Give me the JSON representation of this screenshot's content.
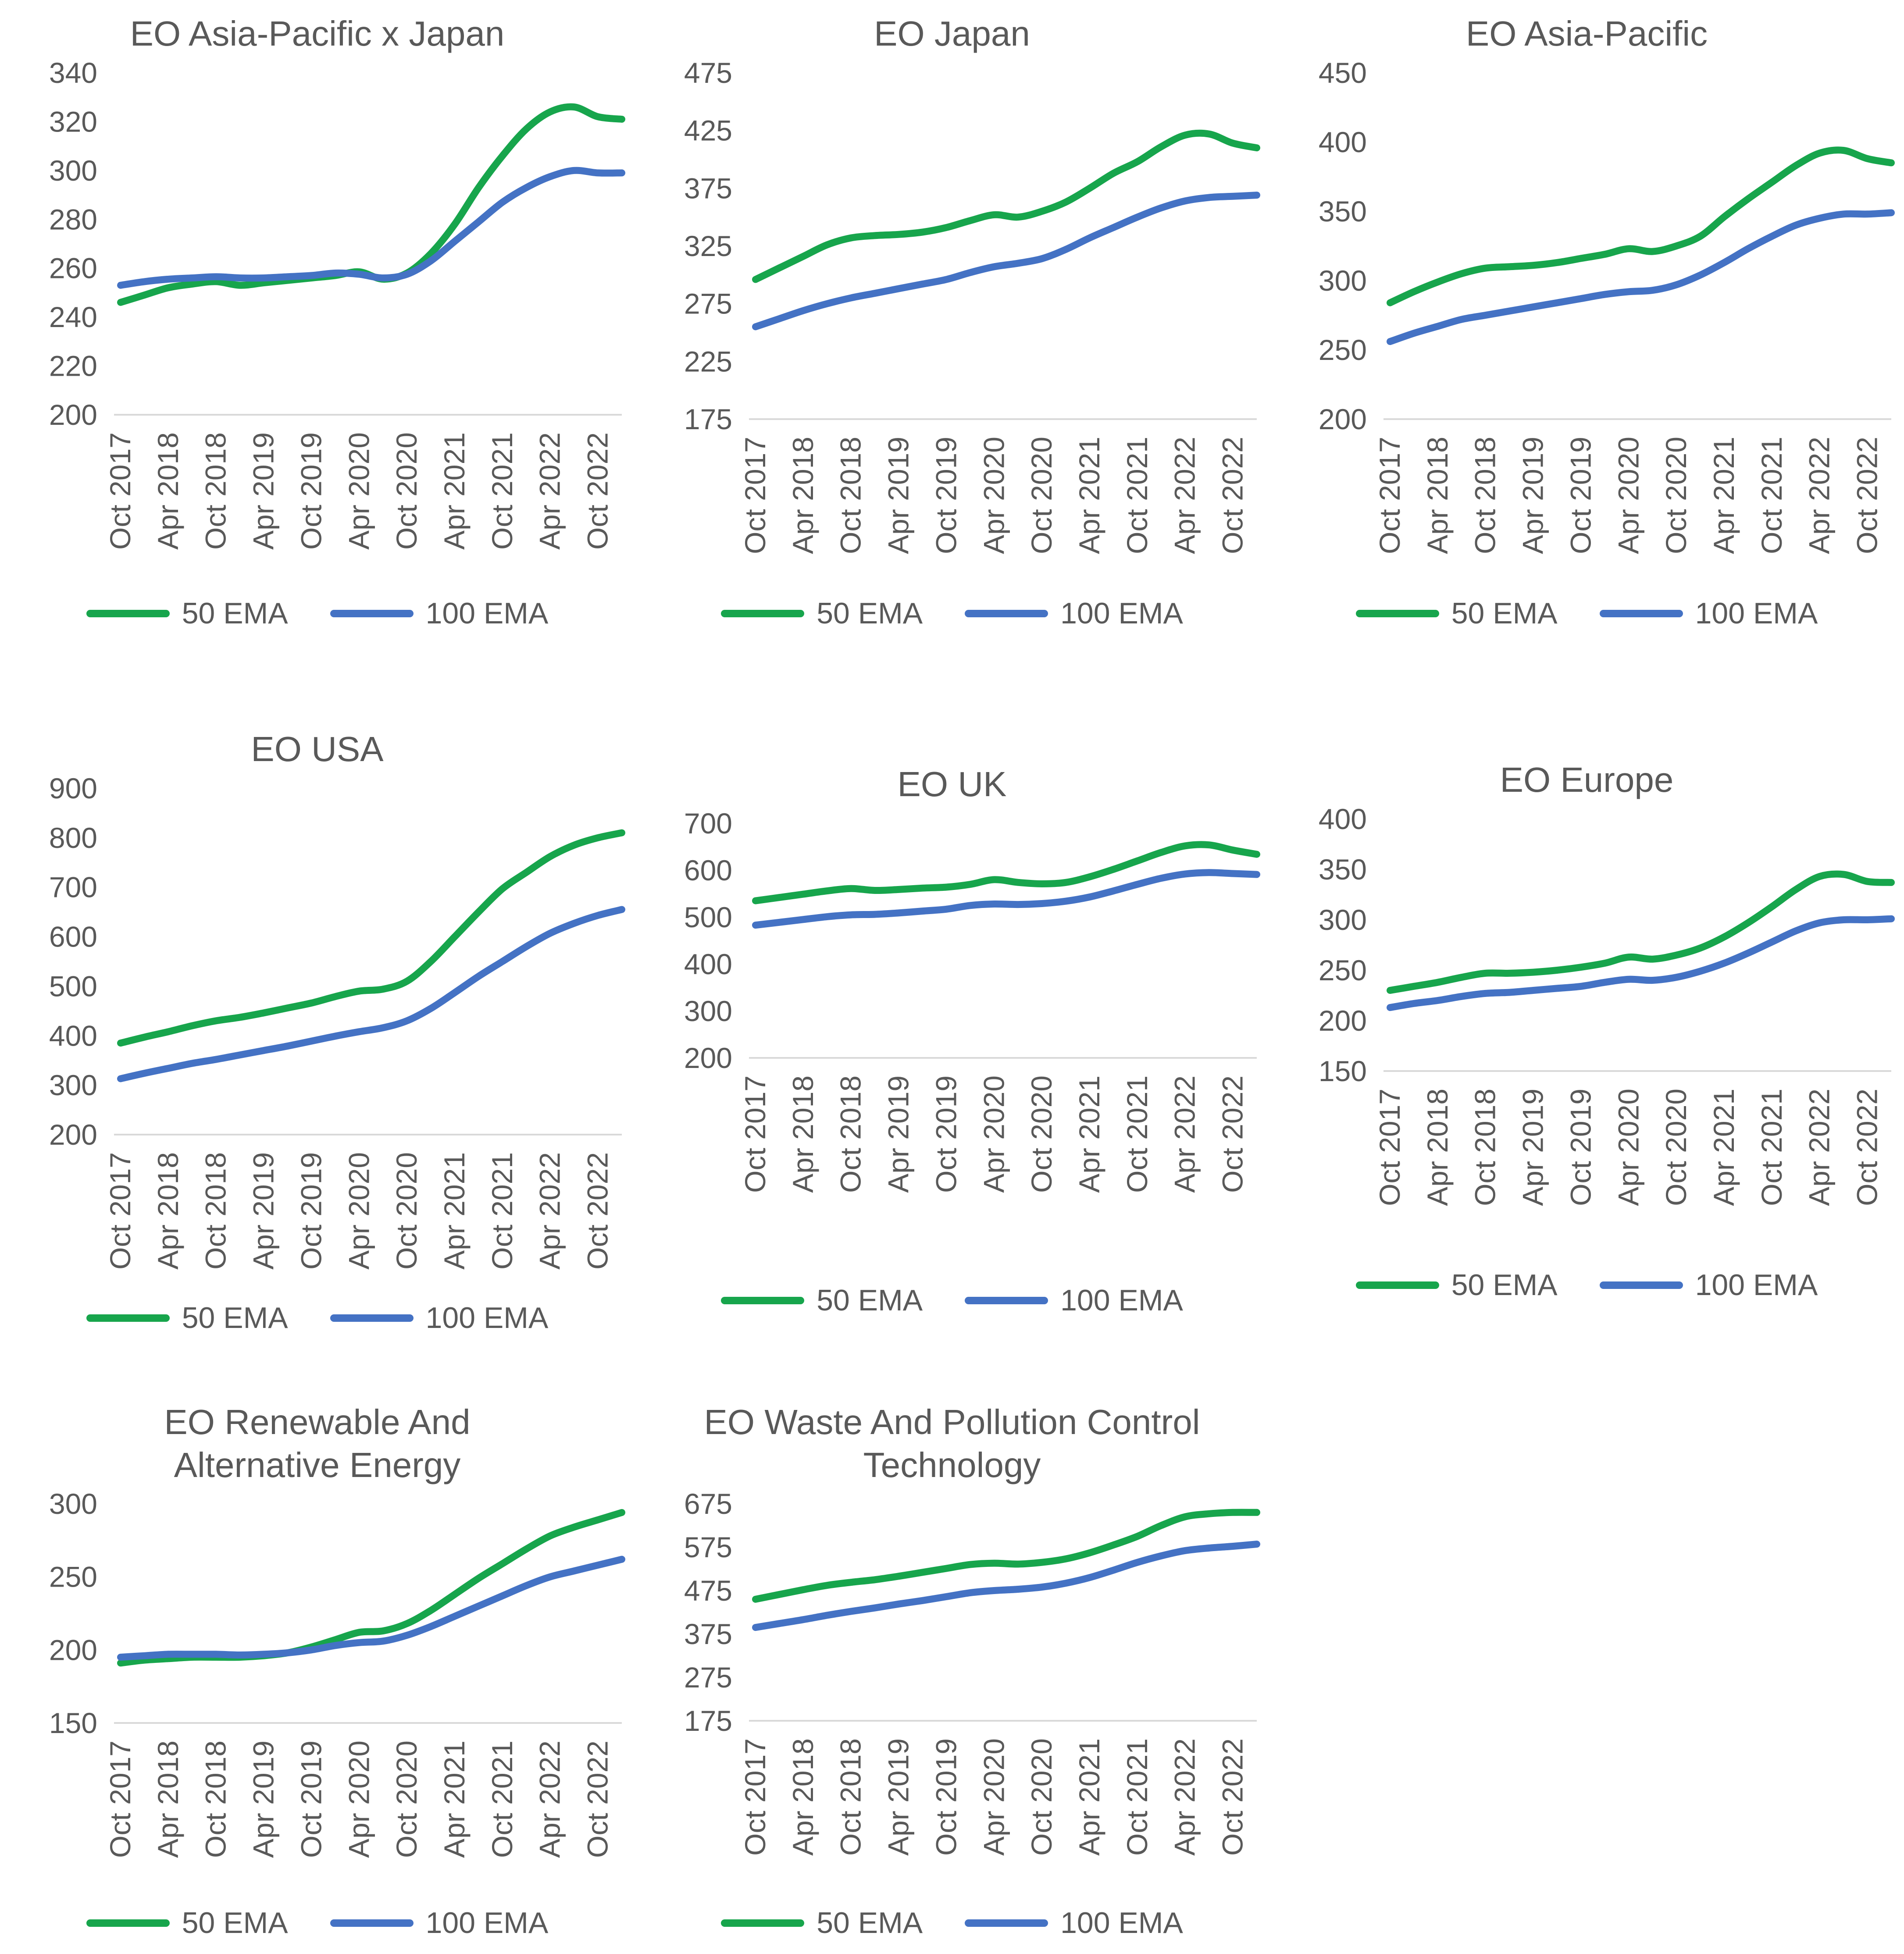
{
  "page": {
    "background": "#FFFFFF"
  },
  "colors": {
    "ema50": "#17A54C",
    "ema100": "#4472C4",
    "text": "#595959",
    "axis_line": "#D9D9D9"
  },
  "legend": {
    "series_50": "50 EMA",
    "series_100": "100 EMA"
  },
  "x_labels": [
    "Oct 2017",
    "Apr 2018",
    "Oct 2018",
    "Apr 2019",
    "Oct 2019",
    "Apr 2020",
    "Oct 2020",
    "Apr 2021",
    "Oct 2021",
    "Apr 2022",
    "Oct 2022"
  ],
  "chart_data": [
    {
      "type": "line",
      "title": "EO Asia-Pacific x Japan",
      "xlabel": "",
      "ylabel": "",
      "ylim": [
        200,
        340
      ],
      "ytick_step": 20,
      "grid": "bottom-axis-only",
      "legend_position": "bottom",
      "x_tick_note": "ticks every 6 months Oct 2017 - Oct 2022; series sampled quarterly",
      "series": [
        {
          "name": "50 EMA",
          "values": [
            246,
            249,
            252,
            253.5,
            254.5,
            253,
            254,
            255,
            256,
            257,
            258.5,
            255.5,
            258,
            266,
            278,
            293,
            306,
            317,
            324,
            326,
            322,
            321
          ]
        },
        {
          "name": "100 EMA",
          "values": [
            253,
            254.5,
            255.5,
            256,
            256.5,
            256,
            256,
            256.5,
            257,
            258,
            257.5,
            256,
            257.5,
            263,
            271,
            279,
            287,
            293,
            297.5,
            300,
            299,
            299
          ]
        }
      ]
    },
    {
      "type": "line",
      "title": "EO Japan",
      "xlabel": "",
      "ylabel": "",
      "ylim": [
        175,
        475
      ],
      "ytick_step": 50,
      "grid": "bottom-axis-only",
      "legend_position": "bottom",
      "series": [
        {
          "name": "50 EMA",
          "values": [
            296,
            306,
            316,
            326,
            332,
            334,
            335,
            337,
            341,
            347,
            352,
            350,
            355,
            363,
            375,
            388,
            398,
            411,
            421,
            422,
            414,
            410
          ]
        },
        {
          "name": "100 EMA",
          "values": [
            255,
            262,
            269,
            275,
            280,
            284,
            288,
            292,
            296,
            302,
            307,
            310,
            314,
            322,
            332,
            341,
            350,
            358,
            364,
            367,
            368,
            369
          ]
        }
      ]
    },
    {
      "type": "line",
      "title": "EO Asia-Pacific",
      "xlabel": "",
      "ylabel": "",
      "ylim": [
        200,
        450
      ],
      "ytick_step": 50,
      "grid": "bottom-axis-only",
      "legend_position": "bottom",
      "series": [
        {
          "name": "50 EMA",
          "values": [
            284,
            292,
            299,
            305,
            309,
            310,
            311,
            313,
            316,
            319,
            323,
            321,
            325,
            332,
            346,
            359,
            371,
            383,
            392,
            394,
            388,
            385
          ]
        },
        {
          "name": "100 EMA",
          "values": [
            256,
            262,
            267,
            272,
            275,
            278,
            281,
            284,
            287,
            290,
            292,
            293,
            297,
            304,
            313,
            323,
            332,
            340,
            345,
            348,
            348,
            349
          ]
        }
      ]
    },
    {
      "type": "line",
      "title": "EO USA",
      "xlabel": "",
      "ylabel": "",
      "ylim": [
        200,
        900
      ],
      "ytick_step": 100,
      "grid": "bottom-axis-only",
      "legend_position": "bottom",
      "series": [
        {
          "name": "50 EMA",
          "values": [
            385,
            397,
            408,
            420,
            430,
            437,
            446,
            456,
            466,
            479,
            490,
            494,
            510,
            550,
            600,
            650,
            697,
            730,
            762,
            785,
            800,
            810
          ]
        },
        {
          "name": "100 EMA",
          "values": [
            313,
            324,
            334,
            344,
            352,
            361,
            370,
            379,
            389,
            399,
            408,
            416,
            430,
            455,
            487,
            520,
            550,
            580,
            607,
            627,
            643,
            655
          ]
        }
      ]
    },
    {
      "type": "line",
      "title": "EO UK",
      "xlabel": "",
      "ylabel": "",
      "ylim": [
        200,
        700
      ],
      "ytick_step": 100,
      "grid": "bottom-axis-only",
      "legend_position": "bottom",
      "series": [
        {
          "name": "50 EMA",
          "values": [
            535,
            542,
            549,
            556,
            561,
            557,
            559,
            562,
            564,
            570,
            580,
            574,
            571,
            574,
            586,
            602,
            620,
            638,
            652,
            654,
            643,
            634
          ]
        },
        {
          "name": "100 EMA",
          "values": [
            483,
            489,
            495,
            501,
            505,
            506,
            509,
            513,
            517,
            525,
            528,
            527,
            529,
            534,
            543,
            556,
            570,
            583,
            592,
            595,
            593,
            591
          ]
        }
      ]
    },
    {
      "type": "line",
      "title": "EO Europe",
      "xlabel": "",
      "ylabel": "",
      "ylim": [
        150,
        400
      ],
      "ytick_step": 50,
      "grid": "bottom-axis-only",
      "legend_position": "bottom",
      "series": [
        {
          "name": "50 EMA",
          "values": [
            230,
            234,
            238,
            243,
            247,
            247,
            248,
            250,
            253,
            257,
            263,
            261,
            265,
            272,
            283,
            297,
            313,
            330,
            343,
            345,
            338,
            337
          ]
        },
        {
          "name": "100 EMA",
          "values": [
            213,
            217,
            220,
            224,
            227,
            228,
            230,
            232,
            234,
            238,
            241,
            240,
            243,
            249,
            257,
            267,
            278,
            289,
            297,
            300,
            300,
            301
          ]
        }
      ]
    },
    {
      "type": "line",
      "title": "EO Renewable And Alternative Energy",
      "xlabel": "",
      "ylabel": "",
      "ylim": [
        150,
        300
      ],
      "ytick_step": 50,
      "grid": "bottom-axis-only",
      "legend_position": "bottom",
      "series": [
        {
          "name": "50 EMA",
          "values": [
            191,
            193,
            194,
            195,
            195,
            195,
            196,
            198,
            202,
            207,
            212,
            213,
            218,
            227,
            238,
            249,
            259,
            269,
            278,
            284,
            289,
            294
          ]
        },
        {
          "name": "100 EMA",
          "values": [
            195,
            196,
            197,
            197,
            197,
            196.5,
            197,
            198,
            200,
            203,
            205,
            206,
            210,
            216,
            223,
            230,
            237,
            244,
            250,
            254,
            258,
            262
          ]
        }
      ]
    },
    {
      "type": "line",
      "title": "EO Waste And Pollution Control Technology",
      "xlabel": "",
      "ylabel": "",
      "ylim": [
        175,
        675
      ],
      "ytick_step": 100,
      "grid": "bottom-axis-only",
      "legend_position": "bottom",
      "series": [
        {
          "name": "50 EMA",
          "values": [
            455,
            466,
            477,
            487,
            494,
            500,
            508,
            517,
            526,
            535,
            538,
            536,
            540,
            548,
            562,
            580,
            600,
            625,
            645,
            652,
            655,
            655
          ]
        },
        {
          "name": "100 EMA",
          "values": [
            390,
            399,
            408,
            418,
            427,
            435,
            444,
            452,
            461,
            470,
            475,
            478,
            483,
            492,
            505,
            522,
            540,
            555,
            567,
            573,
            577,
            582
          ]
        }
      ]
    }
  ]
}
